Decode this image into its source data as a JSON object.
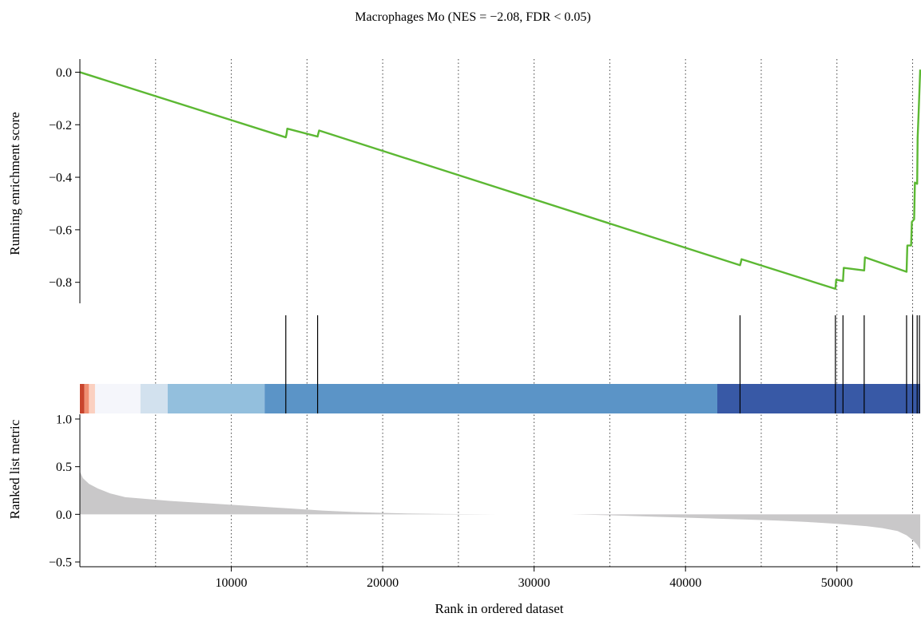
{
  "title": "Macrophages Mo (NES = −2.08, FDR < 0.05)",
  "chart_data": {
    "type": "line",
    "title": "Macrophages Mo (NES = −2.08, FDR < 0.05)",
    "xlabel": "Rank in ordered dataset",
    "xlim": [
      0,
      55500
    ],
    "xticks": [
      10000,
      20000,
      30000,
      40000,
      50000
    ],
    "vertical_dotted_guides": [
      5000,
      10000,
      15000,
      20000,
      25000,
      30000,
      35000,
      40000,
      45000,
      50000,
      55000
    ],
    "colors": {
      "running_score": "#5cb833",
      "ranked_metric_fill": "#c9c8c9",
      "hit_line": "#000000"
    },
    "panels": [
      {
        "name": "running-enrichment-score",
        "type": "line",
        "ylabel": "Running enrichment score",
        "ylim": [
          -0.88,
          0.05
        ],
        "yticks": [
          0.0,
          -0.2,
          -0.4,
          -0.6,
          -0.8
        ],
        "series": [
          {
            "x": [
              0,
              13600,
              13650,
              13700,
              15700,
              15740,
              15800,
              43600,
              43650,
              43700,
              49900,
              49950,
              50400,
              50450,
              51800,
              51850,
              54600,
              54650,
              54900,
              54950,
              55100,
              55150,
              55300,
              55330,
              55400,
              55500
            ],
            "y": [
              0.0,
              -0.248,
              -0.235,
              -0.215,
              -0.245,
              -0.235,
              -0.222,
              -0.735,
              -0.725,
              -0.712,
              -0.825,
              -0.79,
              -0.795,
              -0.745,
              -0.755,
              -0.705,
              -0.76,
              -0.66,
              -0.66,
              -0.57,
              -0.56,
              -0.42,
              -0.425,
              -0.25,
              -0.15,
              0.01
            ]
          }
        ]
      },
      {
        "name": "gene-hits",
        "type": "barcode",
        "hits": [
          13600,
          15700,
          43600,
          49900,
          50400,
          51800,
          54600,
          55000,
          55300,
          55450
        ]
      },
      {
        "name": "rank-color-band",
        "type": "heatmap",
        "segments": [
          {
            "start": 0,
            "end": 300,
            "color": "#c8442d"
          },
          {
            "start": 300,
            "end": 600,
            "color": "#ef8e72"
          },
          {
            "start": 600,
            "end": 1000,
            "color": "#fbd0c0"
          },
          {
            "start": 1000,
            "end": 4000,
            "color": "#f5f6fb"
          },
          {
            "start": 4000,
            "end": 5800,
            "color": "#d2e1ee"
          },
          {
            "start": 5800,
            "end": 12200,
            "color": "#93bfdd"
          },
          {
            "start": 12200,
            "end": 42100,
            "color": "#5b94c7"
          },
          {
            "start": 42100,
            "end": 55500,
            "color": "#3859a6"
          }
        ]
      },
      {
        "name": "ranked-list-metric",
        "type": "area",
        "ylabel": "Ranked list metric",
        "ylim": [
          -0.55,
          1.05
        ],
        "yticks": [
          1.0,
          0.5,
          0.0,
          -0.5
        ],
        "x": [
          0,
          200,
          600,
          1200,
          2000,
          3000,
          4500,
          6000,
          8000,
          10000,
          12000,
          14000,
          16000,
          18000,
          20000,
          22000,
          24000,
          26000,
          27500,
          32400,
          34000,
          36000,
          38000,
          40000,
          42000,
          44000,
          46000,
          48000,
          50000,
          52000,
          53000,
          54000,
          54600,
          55000,
          55300,
          55500
        ],
        "values": [
          0.45,
          0.38,
          0.32,
          0.27,
          0.22,
          0.18,
          0.16,
          0.14,
          0.12,
          0.1,
          0.08,
          0.06,
          0.04,
          0.025,
          0.015,
          0.008,
          0.004,
          0.002,
          0.0,
          0.0,
          -0.005,
          -0.015,
          -0.025,
          -0.035,
          -0.045,
          -0.055,
          -0.065,
          -0.08,
          -0.1,
          -0.125,
          -0.145,
          -0.175,
          -0.22,
          -0.27,
          -0.32,
          -0.37
        ]
      }
    ]
  }
}
